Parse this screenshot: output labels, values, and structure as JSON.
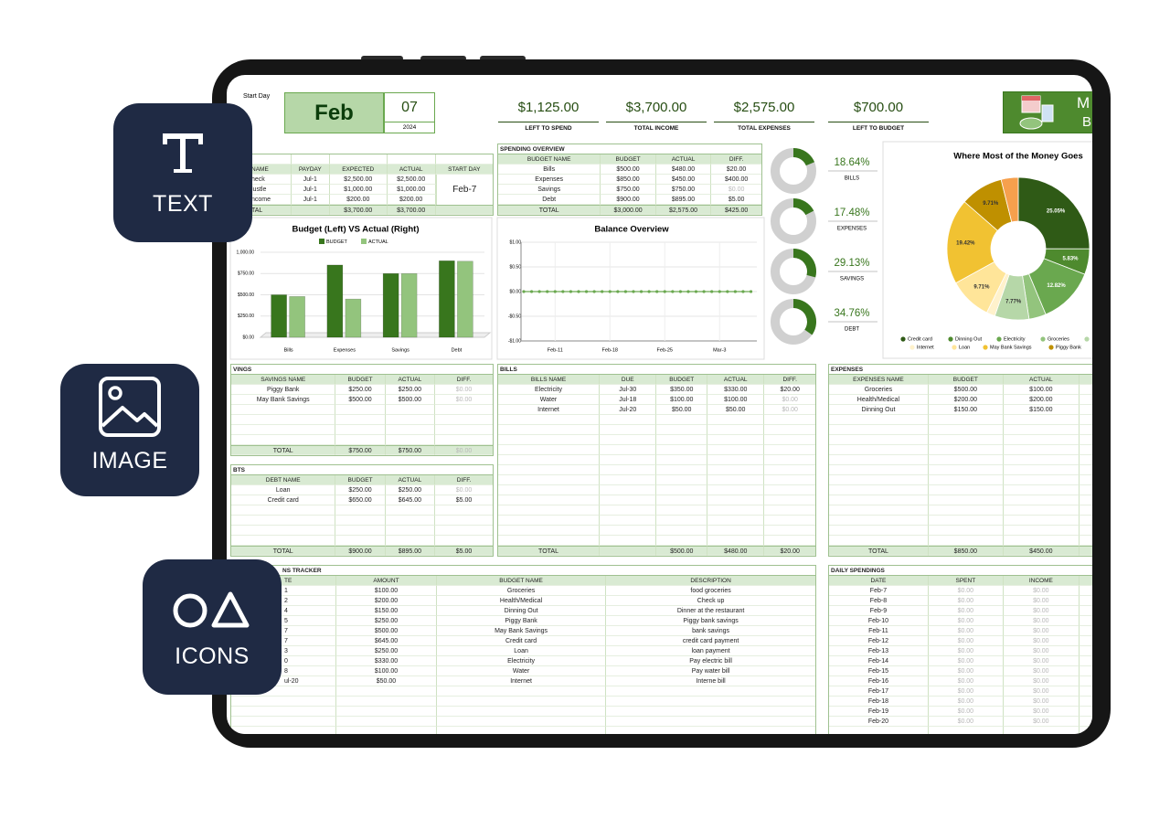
{
  "badges": [
    "TEXT",
    "IMAGE",
    "ICONS"
  ],
  "header": {
    "start_day_label": "Start Day",
    "month": "Feb",
    "day": "07",
    "year": "2024",
    "logo": [
      "M",
      "B"
    ]
  },
  "summary": [
    {
      "value": "$1,125.00",
      "label": "LEFT TO SPEND"
    },
    {
      "value": "$3,700.00",
      "label": "TOTAL INCOME"
    },
    {
      "value": "$2,575.00",
      "label": "TOTAL EXPENSES"
    },
    {
      "value": "$700.00",
      "label": "LEFT TO BUDGET"
    }
  ],
  "tables": {
    "income": {
      "headers": [
        "NAME",
        "PAYDAY",
        "EXPECTED",
        "ACTUAL",
        "START DAY"
      ],
      "rows": [
        [
          "heck",
          "Jul-1",
          "$2,500.00",
          "$2,500.00"
        ],
        [
          "lustle",
          "Jul-1",
          "$1,000.00",
          "$1,000.00"
        ],
        [
          "ncome",
          "Jul-1",
          "$200.00",
          "$200.00"
        ]
      ],
      "total": [
        "TAL",
        null,
        "$3,700.00",
        "$3,700.00"
      ],
      "start_day": "Feb-7"
    },
    "spending_overview": {
      "title": "SPENDING OVERVIEW",
      "headers": [
        "BUDGET NAME",
        "BUDGET",
        "ACTUAL",
        "DIFF."
      ],
      "rows": [
        [
          "Bills",
          "$500.00",
          "$480.00",
          "$20.00"
        ],
        [
          "Expenses",
          "$850.00",
          "$450.00",
          "$400.00"
        ],
        [
          "Savings",
          "$750.00",
          "$750.00",
          {
            "text": "$0.00",
            "muted": true
          }
        ],
        [
          "Debt",
          "$900.00",
          "$895.00",
          "$5.00"
        ]
      ],
      "total": [
        "TOTAL",
        "$3,000.00",
        "$2,575.00",
        "$425.00"
      ]
    },
    "savings": {
      "title": "VINGS",
      "headers": [
        "SAVINGS NAME",
        "BUDGET",
        "ACTUAL",
        "DIFF."
      ],
      "rows": [
        [
          "Piggy Bank",
          "$250.00",
          "$250.00",
          {
            "text": "$0.00",
            "muted": true
          }
        ],
        [
          "May Bank Savings",
          "$500.00",
          "$500.00",
          {
            "text": "$0.00",
            "muted": true
          }
        ]
      ],
      "total": [
        "TOTAL",
        "$750.00",
        "$750.00",
        {
          "text": "$0.00",
          "muted": true
        }
      ]
    },
    "debts": {
      "title": "BTS",
      "headers": [
        "DEBT NAME",
        "BUDGET",
        "ACTUAL",
        "DIFF."
      ],
      "rows": [
        [
          "Loan",
          "$250.00",
          "$250.00",
          {
            "text": "$0.00",
            "muted": true
          }
        ],
        [
          "Credit card",
          "$650.00",
          "$645.00",
          "$5.00"
        ]
      ],
      "total": [
        "TOTAL",
        "$900.00",
        "$895.00",
        "$5.00"
      ]
    },
    "bills": {
      "title": "BILLS",
      "headers": [
        "BILLS NAME",
        "DUE",
        "BUDGET",
        "ACTUAL",
        "DIFF."
      ],
      "rows": [
        [
          "Electricity",
          "Jul-30",
          "$350.00",
          "$330.00",
          "$20.00"
        ],
        [
          "Water",
          "Jul-18",
          "$100.00",
          "$100.00",
          {
            "text": "$0.00",
            "muted": true
          }
        ],
        [
          "Internet",
          "Jul-20",
          "$50.00",
          "$50.00",
          {
            "text": "$0.00",
            "muted": true
          }
        ]
      ],
      "total": [
        "TOTAL",
        null,
        "$500.00",
        "$480.00",
        "$20.00"
      ]
    },
    "expenses": {
      "title": "EXPENSES",
      "headers": [
        "EXPENSES NAME",
        "BUDGET",
        "ACTUAL"
      ],
      "rows": [
        [
          "Groceries",
          "$500.00",
          "$100.00"
        ],
        [
          "Health/Medical",
          "$200.00",
          "$200.00"
        ],
        [
          "Dinning Out",
          "$150.00",
          "$150.00"
        ]
      ],
      "total": [
        "TOTAL",
        "$850.00",
        "$450.00"
      ]
    },
    "transactions": {
      "title": "NS TRACKER",
      "headers": [
        "TE",
        "AMOUNT",
        "BUDGET NAME",
        "DESCRIPTION"
      ],
      "rows": [
        [
          "1",
          "$100.00",
          "Groceries",
          "food groceries"
        ],
        [
          "2",
          "$200.00",
          "Health/Medical",
          "Check up"
        ],
        [
          "4",
          "$150.00",
          "Dinning Out",
          "Dinner at the restaurant"
        ],
        [
          "5",
          "$250.00",
          "Piggy Bank",
          "Piggy bank savings"
        ],
        [
          "7",
          "$500.00",
          "May Bank Savings",
          "bank savings"
        ],
        [
          "7",
          "$645.00",
          "Credit card",
          "credit card payment"
        ],
        [
          "3",
          "$250.00",
          "Loan",
          "loan payment"
        ],
        [
          "0",
          "$330.00",
          "Electricity",
          "Pay electric bill"
        ],
        [
          "8",
          "$100.00",
          "Water",
          "Pay water bill"
        ],
        [
          "ul-20",
          "$50.00",
          "Internet",
          "Interne bill"
        ]
      ]
    },
    "daily": {
      "title": "DAILY SPENDINGS",
      "headers": [
        "DATE",
        "SPENT",
        "INCOME"
      ],
      "rows": [
        [
          "Feb-7",
          {
            "text": "$0.00",
            "muted": true
          },
          {
            "text": "$0.00",
            "muted": true
          }
        ],
        [
          "Feb-8",
          {
            "text": "$0.00",
            "muted": true
          },
          {
            "text": "$0.00",
            "muted": true
          }
        ],
        [
          "Feb-9",
          {
            "text": "$0.00",
            "muted": true
          },
          {
            "text": "$0.00",
            "muted": true
          }
        ],
        [
          "Feb-10",
          {
            "text": "$0.00",
            "muted": true
          },
          {
            "text": "$0.00",
            "muted": true
          }
        ],
        [
          "Feb-11",
          {
            "text": "$0.00",
            "muted": true
          },
          {
            "text": "$0.00",
            "muted": true
          }
        ],
        [
          "Feb-12",
          {
            "text": "$0.00",
            "muted": true
          },
          {
            "text": "$0.00",
            "muted": true
          }
        ],
        [
          "Feb-13",
          {
            "text": "$0.00",
            "muted": true
          },
          {
            "text": "$0.00",
            "muted": true
          }
        ],
        [
          "Feb-14",
          {
            "text": "$0.00",
            "muted": true
          },
          {
            "text": "$0.00",
            "muted": true
          }
        ],
        [
          "Feb-15",
          {
            "text": "$0.00",
            "muted": true
          },
          {
            "text": "$0.00",
            "muted": true
          }
        ],
        [
          "Feb-16",
          {
            "text": "$0.00",
            "muted": true
          },
          {
            "text": "$0.00",
            "muted": true
          }
        ],
        [
          "Feb-17",
          {
            "text": "$0.00",
            "muted": true
          },
          {
            "text": "$0.00",
            "muted": true
          }
        ],
        [
          "Feb-18",
          {
            "text": "$0.00",
            "muted": true
          },
          {
            "text": "$0.00",
            "muted": true
          }
        ],
        [
          "Feb-19",
          {
            "text": "$0.00",
            "muted": true
          },
          {
            "text": "$0.00",
            "muted": true
          }
        ],
        [
          "Feb-20",
          {
            "text": "$0.00",
            "muted": true
          },
          {
            "text": "$0.00",
            "muted": true
          }
        ]
      ]
    }
  },
  "chart_data": [
    {
      "type": "bar",
      "title": "Budget (Left) VS Actual (Right)",
      "categories": [
        "Bills",
        "Expenses",
        "Savings",
        "Debt"
      ],
      "series": [
        {
          "name": "BUDGET",
          "color": "#38761d",
          "values": [
            500,
            850,
            750,
            900
          ]
        },
        {
          "name": "ACTUAL",
          "color": "#93c47d",
          "values": [
            480,
            450,
            750,
            895
          ]
        }
      ],
      "ylim": [
        0,
        1000
      ],
      "yticks": [
        {
          "value": 0,
          "label": "$0.00"
        },
        {
          "value": 250,
          "label": "$250.00"
        },
        {
          "value": 500,
          "label": "$500.00"
        },
        {
          "value": 750,
          "label": "$750.00"
        },
        {
          "value": 1000,
          "label": "1,000.00"
        }
      ]
    },
    {
      "type": "line",
      "title": "Balance Overview",
      "categories": [
        null,
        null,
        null,
        null,
        "Feb-11",
        null,
        null,
        null,
        null,
        null,
        null,
        "Feb-18",
        null,
        null,
        null,
        null,
        null,
        null,
        "Feb-25",
        null,
        null,
        null,
        null,
        null,
        null,
        "Mar-3",
        null,
        null,
        null,
        null
      ],
      "series": [
        {
          "color": "#6aa84f",
          "values": [
            0,
            0,
            0,
            0,
            0,
            0,
            0,
            0,
            0,
            0,
            0,
            0,
            0,
            0,
            0,
            0,
            0,
            0,
            0,
            0,
            0,
            0,
            0,
            0,
            0,
            0,
            0,
            0,
            0,
            0
          ]
        }
      ],
      "ylim": [
        -1,
        1
      ],
      "yticks": [
        {
          "value": -1,
          "label": "-$1.00"
        },
        {
          "value": -0.5,
          "label": "-$0.50"
        },
        {
          "value": 0,
          "label": "$0.00"
        },
        {
          "value": 0.5,
          "label": "$0.50"
        },
        {
          "value": 1,
          "label": "$1.00"
        }
      ]
    },
    {
      "type": "donut",
      "categories": [
        "BILLS",
        "EXPENSES",
        "SAVINGS",
        "DEBT"
      ],
      "values": [
        18.64,
        17.48,
        29.13,
        34.76
      ],
      "value_labels": [
        "18.64%",
        "17.48%",
        "29.13%",
        "34.76%"
      ],
      "color": "#38761d"
    },
    {
      "type": "pie",
      "title": "Where Most of the Money Goes",
      "categories": [
        "Credit card",
        "Dinning Out",
        "Electricity",
        "Groceries",
        null,
        "Internet",
        "Loan",
        "May Bank Savings",
        "Piggy Bank",
        null
      ],
      "values": [
        25.05,
        5.83,
        12.82,
        3.88,
        7.77,
        1.94,
        9.71,
        19.42,
        9.71,
        3.88
      ],
      "value_labels": [
        "25.05%",
        "5.83%",
        "12.82%",
        null,
        "7.77%",
        null,
        "9.71%",
        "19.42%",
        "9.71%",
        null
      ],
      "colors": [
        "#2f5a16",
        "#4e8a2e",
        "#6aa84f",
        "#93c47d",
        "#b6d7a8",
        "#fff2cc",
        "#ffe599",
        "#f1c232",
        "#bf9000",
        "#f6a04d"
      ]
    }
  ]
}
